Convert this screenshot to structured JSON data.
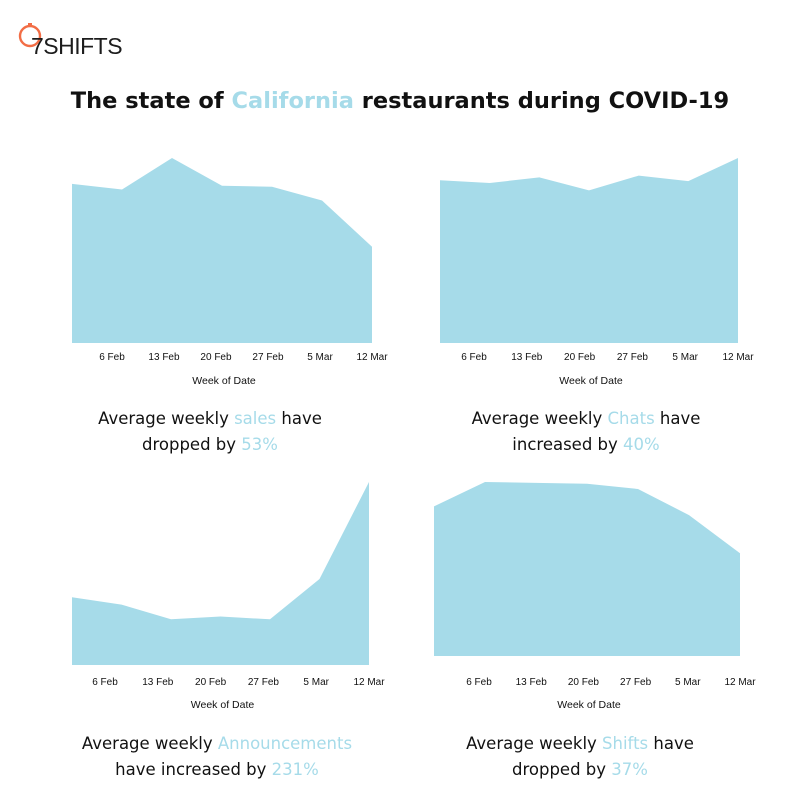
{
  "brand": {
    "logo_text": "7SHIFTS",
    "logo_color": "#f26d45"
  },
  "title": {
    "prefix": "The state of ",
    "highlight": "California",
    "suffix": " restaurants during COVID-19"
  },
  "colors": {
    "area_fill": "#a6dbe9",
    "highlight_text": "#a6dbe9",
    "text": "#111111"
  },
  "captions": [
    {
      "line1_pre": "Average weekly ",
      "metric": "sales",
      "line1_post": " have",
      "line2_pre": "dropped by ",
      "percent": "53%"
    },
    {
      "line1_pre": "Average weekly ",
      "metric": "Chats",
      "line1_post": " have",
      "line2_pre": "increased by ",
      "percent": "40%"
    },
    {
      "line1_pre": "Average weekly ",
      "metric": "Announcements",
      "line1_post": "",
      "line2_pre": "have increased by ",
      "percent": "231%"
    },
    {
      "line1_pre": "Average weekly ",
      "metric": "Shifts",
      "line1_post": " have",
      "line2_pre": "dropped by ",
      "percent": "37%"
    }
  ],
  "chart_data": [
    {
      "type": "area",
      "metric": "sales",
      "x": [
        "",
        "6 Feb",
        "13 Feb",
        "20 Feb",
        "27 Feb",
        "5 Mar",
        "12 Mar"
      ],
      "tick_labels": [
        "6 Feb",
        "13 Feb",
        "20 Feb",
        "27 Feb",
        "5 Mar",
        "12 Mar"
      ],
      "xlabel": "Week of Date",
      "values": [
        86,
        83,
        100,
        85,
        84.5,
        77,
        52
      ],
      "ylim": [
        0,
        100
      ],
      "grid": false,
      "y_axis_shown": false
    },
    {
      "type": "area",
      "metric": "Chats",
      "x": [
        "",
        "6 Feb",
        "13 Feb",
        "20 Feb",
        "27 Feb",
        "5 Mar",
        "12 Mar"
      ],
      "tick_labels": [
        "6 Feb",
        "13 Feb",
        "20 Feb",
        "27 Feb",
        "5 Mar",
        "12 Mar"
      ],
      "xlabel": "Week of Date",
      "values": [
        88,
        86.5,
        89.5,
        82.5,
        90.5,
        87.5,
        100
      ],
      "ylim": [
        0,
        100
      ],
      "grid": false,
      "y_axis_shown": false
    },
    {
      "type": "area",
      "metric": "Announcements",
      "x": [
        "",
        "6 Feb",
        "13 Feb",
        "20 Feb",
        "27 Feb",
        "5 Mar",
        "12 Mar"
      ],
      "tick_labels": [
        "6 Feb",
        "13 Feb",
        "20 Feb",
        "27 Feb",
        "5 Mar",
        "12 Mar"
      ],
      "xlabel": "Week of Date",
      "values": [
        37,
        33,
        25,
        26.5,
        25,
        47,
        100
      ],
      "ylim": [
        0,
        100
      ],
      "grid": false,
      "y_axis_shown": false
    },
    {
      "type": "area",
      "metric": "Shifts",
      "x": [
        "",
        "6 Feb",
        "13 Feb",
        "20 Feb",
        "27 Feb",
        "5 Mar",
        "12 Mar"
      ],
      "tick_labels": [
        "6 Feb",
        "13 Feb",
        "20 Feb",
        "27 Feb",
        "5 Mar",
        "12 Mar"
      ],
      "xlabel": "Week of Date",
      "values": [
        86,
        100,
        99.5,
        99,
        96,
        81,
        59
      ],
      "ylim": [
        0,
        100
      ],
      "grid": false,
      "y_axis_shown": false
    }
  ]
}
